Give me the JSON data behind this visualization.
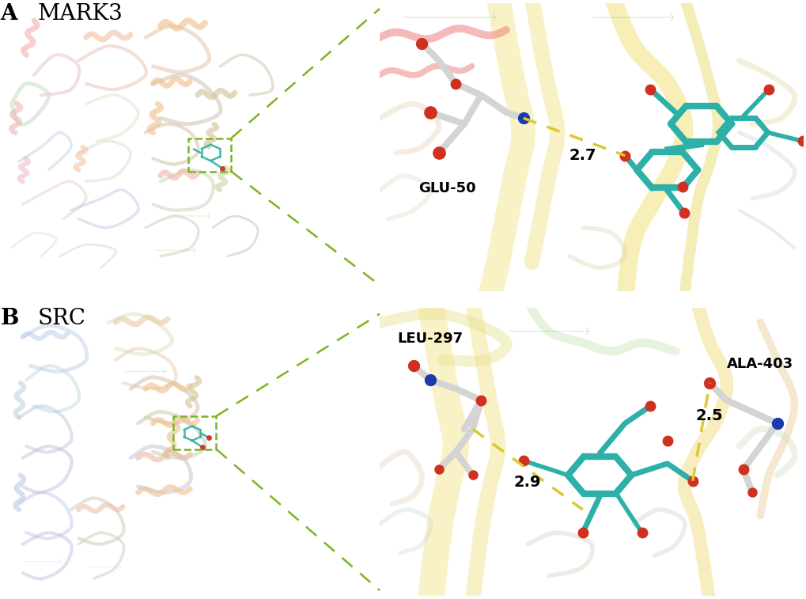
{
  "panel_A_label": "A",
  "panel_A_title": "MARK3",
  "panel_B_label": "B",
  "panel_B_title": "SRC",
  "panel_A_residue": "GLU-50",
  "panel_A_distance": "2.7",
  "panel_B_residue1": "LEU-297",
  "panel_B_residue2": "ALA-403",
  "panel_B_distance1": "2.9",
  "panel_B_distance2": "2.5",
  "bg_color": "#ffffff",
  "label_fontsize_bold": 20,
  "title_fontsize": 20,
  "annotation_fontsize": 12,
  "teal_color": "#2db0a8",
  "gray_color": "#c8c8c8",
  "red_color": "#d03020",
  "blue_color": "#1a3ab0",
  "yellow_color": "#dcc830",
  "green_dashed": "#7ab520",
  "box_color": "#7ab520",
  "figwidth": 10.2,
  "figheight": 7.57,
  "dpi": 100
}
